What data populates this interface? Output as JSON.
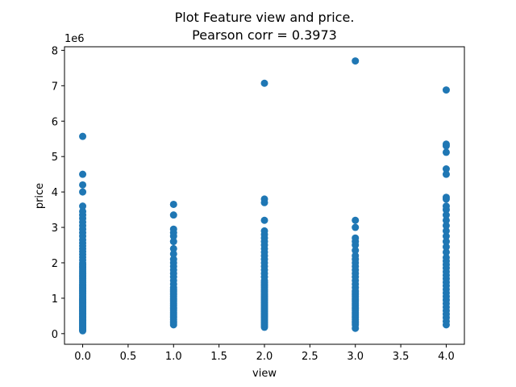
{
  "chart_data": {
    "type": "scatter",
    "title_line1": "Plot Feature view and price.",
    "title_line2": "Pearson corr = 0.3973",
    "xlabel": "view",
    "ylabel": "price",
    "y_offset_label": "1e6",
    "xlim": [
      -0.2,
      4.2
    ],
    "ylim": [
      -0.3,
      8.1
    ],
    "x_ticks": [
      {
        "value": 0.0,
        "label": "0.0"
      },
      {
        "value": 0.5,
        "label": "0.5"
      },
      {
        "value": 1.0,
        "label": "1.0"
      },
      {
        "value": 1.5,
        "label": "1.5"
      },
      {
        "value": 2.0,
        "label": "2.0"
      },
      {
        "value": 2.5,
        "label": "2.5"
      },
      {
        "value": 3.0,
        "label": "3.0"
      },
      {
        "value": 3.5,
        "label": "3.5"
      },
      {
        "value": 4.0,
        "label": "4.0"
      }
    ],
    "y_ticks": [
      {
        "value": 0,
        "label": "0"
      },
      {
        "value": 1,
        "label": "1"
      },
      {
        "value": 2,
        "label": "2"
      },
      {
        "value": 3,
        "label": "3"
      },
      {
        "value": 4,
        "label": "4"
      },
      {
        "value": 5,
        "label": "5"
      },
      {
        "value": 6,
        "label": "6"
      },
      {
        "value": 7,
        "label": "7"
      },
      {
        "value": 8,
        "label": "8"
      }
    ],
    "grid": false,
    "color": "#1f77b4",
    "point_groups": [
      {
        "x": 0,
        "y": [
          0.08,
          0.1,
          0.13,
          0.16,
          0.19,
          0.22,
          0.25,
          0.28,
          0.31,
          0.34,
          0.37,
          0.4,
          0.43,
          0.46,
          0.49,
          0.52,
          0.55,
          0.58,
          0.61,
          0.64,
          0.67,
          0.7,
          0.73,
          0.76,
          0.79,
          0.82,
          0.85,
          0.88,
          0.91,
          0.94,
          0.97,
          1.0,
          1.04,
          1.08,
          1.12,
          1.16,
          1.2,
          1.24,
          1.28,
          1.32,
          1.36,
          1.4,
          1.45,
          1.5,
          1.55,
          1.6,
          1.65,
          1.7,
          1.75,
          1.8,
          1.85,
          1.9,
          1.95,
          2.0,
          2.08,
          2.16,
          2.24,
          2.32,
          2.4,
          2.48,
          2.56,
          2.65,
          2.75,
          2.85,
          2.95,
          3.05,
          3.15,
          3.25,
          3.35,
          3.45,
          3.6,
          4.0,
          4.2,
          4.5,
          5.57
        ]
      },
      {
        "x": 1,
        "y": [
          0.25,
          0.3,
          0.35,
          0.4,
          0.45,
          0.5,
          0.55,
          0.6,
          0.65,
          0.7,
          0.75,
          0.8,
          0.85,
          0.9,
          0.95,
          1.0,
          1.05,
          1.1,
          1.15,
          1.2,
          1.25,
          1.3,
          1.4,
          1.5,
          1.6,
          1.7,
          1.8,
          1.9,
          2.0,
          2.1,
          2.25,
          2.4,
          2.6,
          2.75,
          2.85,
          2.95,
          3.35,
          3.65
        ]
      },
      {
        "x": 2,
        "y": [
          0.18,
          0.22,
          0.26,
          0.3,
          0.34,
          0.38,
          0.42,
          0.46,
          0.5,
          0.54,
          0.58,
          0.62,
          0.66,
          0.7,
          0.74,
          0.78,
          0.82,
          0.86,
          0.9,
          0.94,
          0.98,
          1.02,
          1.06,
          1.1,
          1.15,
          1.2,
          1.25,
          1.3,
          1.35,
          1.4,
          1.45,
          1.5,
          1.6,
          1.7,
          1.8,
          1.9,
          2.0,
          2.1,
          2.2,
          2.3,
          2.4,
          2.5,
          2.6,
          2.7,
          2.8,
          2.9,
          3.2,
          3.7,
          3.8,
          7.07
        ]
      },
      {
        "x": 3,
        "y": [
          0.15,
          0.25,
          0.3,
          0.35,
          0.4,
          0.45,
          0.5,
          0.55,
          0.6,
          0.65,
          0.7,
          0.75,
          0.8,
          0.85,
          0.9,
          0.95,
          1.0,
          1.05,
          1.1,
          1.15,
          1.2,
          1.3,
          1.4,
          1.5,
          1.6,
          1.7,
          1.8,
          1.9,
          2.0,
          2.1,
          2.2,
          2.35,
          2.5,
          2.6,
          2.7,
          3.0,
          3.2,
          7.7
        ]
      },
      {
        "x": 4,
        "y": [
          0.25,
          0.35,
          0.45,
          0.55,
          0.65,
          0.75,
          0.85,
          0.95,
          1.05,
          1.15,
          1.25,
          1.35,
          1.45,
          1.55,
          1.65,
          1.75,
          1.85,
          1.95,
          2.05,
          2.15,
          2.3,
          2.45,
          2.6,
          2.75,
          2.9,
          3.05,
          3.2,
          3.35,
          3.5,
          3.6,
          3.8,
          3.85,
          4.5,
          4.65,
          5.12,
          5.3,
          5.35,
          6.88
        ]
      }
    ]
  }
}
